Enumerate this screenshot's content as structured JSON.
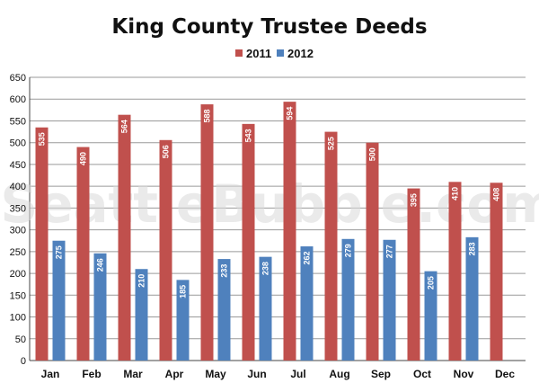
{
  "watermark": "SeattleBubble.com",
  "colors": {
    "s2011": "#c0504d",
    "s2012": "#4f81bd",
    "grid": "#9a9a9a"
  },
  "chart_data": {
    "type": "bar",
    "title": "King County Trustee Deeds",
    "xlabel": "",
    "ylabel": "",
    "ylim": [
      0,
      650
    ],
    "ytick_step": 50,
    "grid": true,
    "legend": "top-center",
    "categories": [
      "Jan",
      "Feb",
      "Mar",
      "Apr",
      "May",
      "Jun",
      "Jul",
      "Aug",
      "Sep",
      "Oct",
      "Nov",
      "Dec"
    ],
    "series": [
      {
        "name": "2011",
        "values": [
          535,
          490,
          564,
          506,
          588,
          543,
          594,
          525,
          500,
          395,
          410,
          408
        ]
      },
      {
        "name": "2012",
        "values": [
          275,
          246,
          210,
          185,
          233,
          238,
          262,
          279,
          277,
          205,
          283,
          null
        ]
      }
    ]
  }
}
